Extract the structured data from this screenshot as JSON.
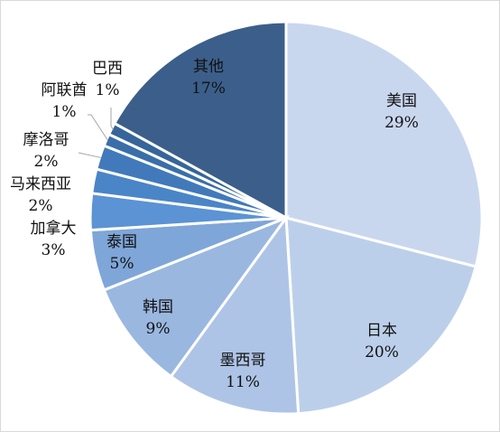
{
  "chart_data": {
    "type": "pie",
    "title": "",
    "slices": [
      {
        "name": "美国",
        "value": 29,
        "label": "29%",
        "color": "#c9d7ee"
      },
      {
        "name": "日本",
        "value": 20,
        "label": "20%",
        "color": "#bccfea"
      },
      {
        "name": "墨西哥",
        "value": 11,
        "label": "11%",
        "color": "#aec4e6"
      },
      {
        "name": "韩国",
        "value": 9,
        "label": "9%",
        "color": "#9ab7e0"
      },
      {
        "name": "泰国",
        "value": 5,
        "label": "5%",
        "color": "#7fa6d8"
      },
      {
        "name": "加拿大",
        "value": 3,
        "label": "3%",
        "color": "#5b93d4"
      },
      {
        "name": "马来西亚",
        "value": 2,
        "label": "2%",
        "color": "#4a85c7"
      },
      {
        "name": "摩洛哥",
        "value": 2,
        "label": "2%",
        "color": "#4179bb"
      },
      {
        "name": "阿联酋",
        "value": 1,
        "label": "1%",
        "color": "#3a6ea9"
      },
      {
        "name": "巴西",
        "value": 1,
        "label": "1%",
        "color": "#36659b"
      },
      {
        "name": "其他",
        "value": 17,
        "label": "17%",
        "color": "#3b5f8a"
      }
    ]
  }
}
